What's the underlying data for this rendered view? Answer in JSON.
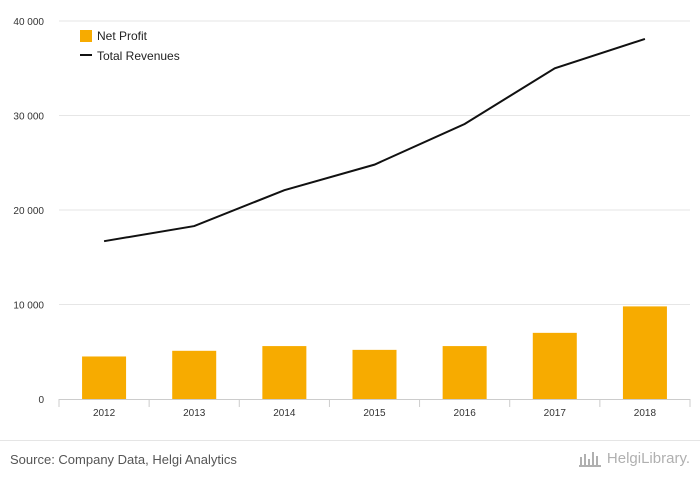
{
  "chart_data": {
    "type": "bar",
    "categories": [
      "2012",
      "2013",
      "2014",
      "2015",
      "2016",
      "2017",
      "2018"
    ],
    "series": [
      {
        "name": "Net Profit",
        "type": "bar",
        "color": "#f7ab00",
        "values": [
          4500,
          5100,
          5600,
          5200,
          5600,
          7000,
          9800
        ]
      },
      {
        "name": "Total Revenues",
        "type": "line",
        "color": "#111111",
        "values": [
          16700,
          18300,
          22100,
          24800,
          29100,
          35000,
          38100
        ]
      }
    ],
    "yticks": [
      "0",
      "10 000",
      "20 000",
      "30 000",
      "40 000"
    ],
    "ylim": [
      0,
      40000
    ],
    "grid": true,
    "legend_position": "top-left"
  },
  "footer": {
    "source": "Source: Company Data, Helgi Analytics",
    "brand": "HelgiLibrary."
  },
  "colors": {
    "bar": "#f7ab00",
    "line": "#111111",
    "grid": "#e6e6e6"
  },
  "icons": {
    "brand_logo": "helgi-library-logo"
  }
}
